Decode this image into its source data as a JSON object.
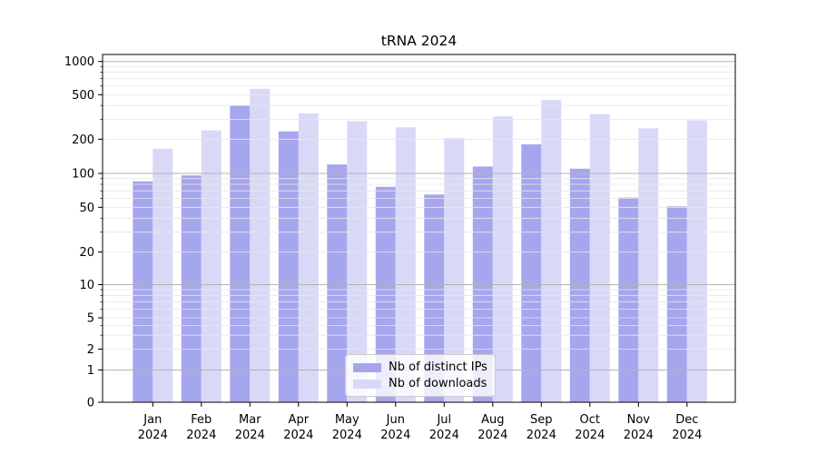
{
  "chart_data": {
    "type": "bar",
    "title": "tRNA 2024",
    "categories": [
      "Jan 2024",
      "Feb 2024",
      "Mar 2024",
      "Apr 2024",
      "May 2024",
      "Jun 2024",
      "Jul 2024",
      "Aug 2024",
      "Sep 2024",
      "Oct 2024",
      "Nov 2024",
      "Dec 2024"
    ],
    "series": [
      {
        "name": "Nb of distinct IPs",
        "color": "#a6a6ee",
        "values": [
          85,
          96,
          400,
          235,
          120,
          76,
          65,
          115,
          180,
          110,
          61,
          51
        ]
      },
      {
        "name": "Nb of downloads",
        "color": "#d9d9f7",
        "values": [
          165,
          240,
          565,
          340,
          290,
          255,
          205,
          320,
          450,
          335,
          250,
          295
        ]
      }
    ],
    "yscale": "symlog",
    "yticks": [
      0,
      1,
      2,
      5,
      10,
      20,
      50,
      100,
      200,
      500,
      1000
    ],
    "ylim": [
      0,
      1150
    ],
    "xlabel": "",
    "ylabel": "",
    "grid": true,
    "grid_major_color": "#b3b3b3",
    "grid_minor_color": "#e7e7e7",
    "legend_position": "lower-center-inside"
  }
}
